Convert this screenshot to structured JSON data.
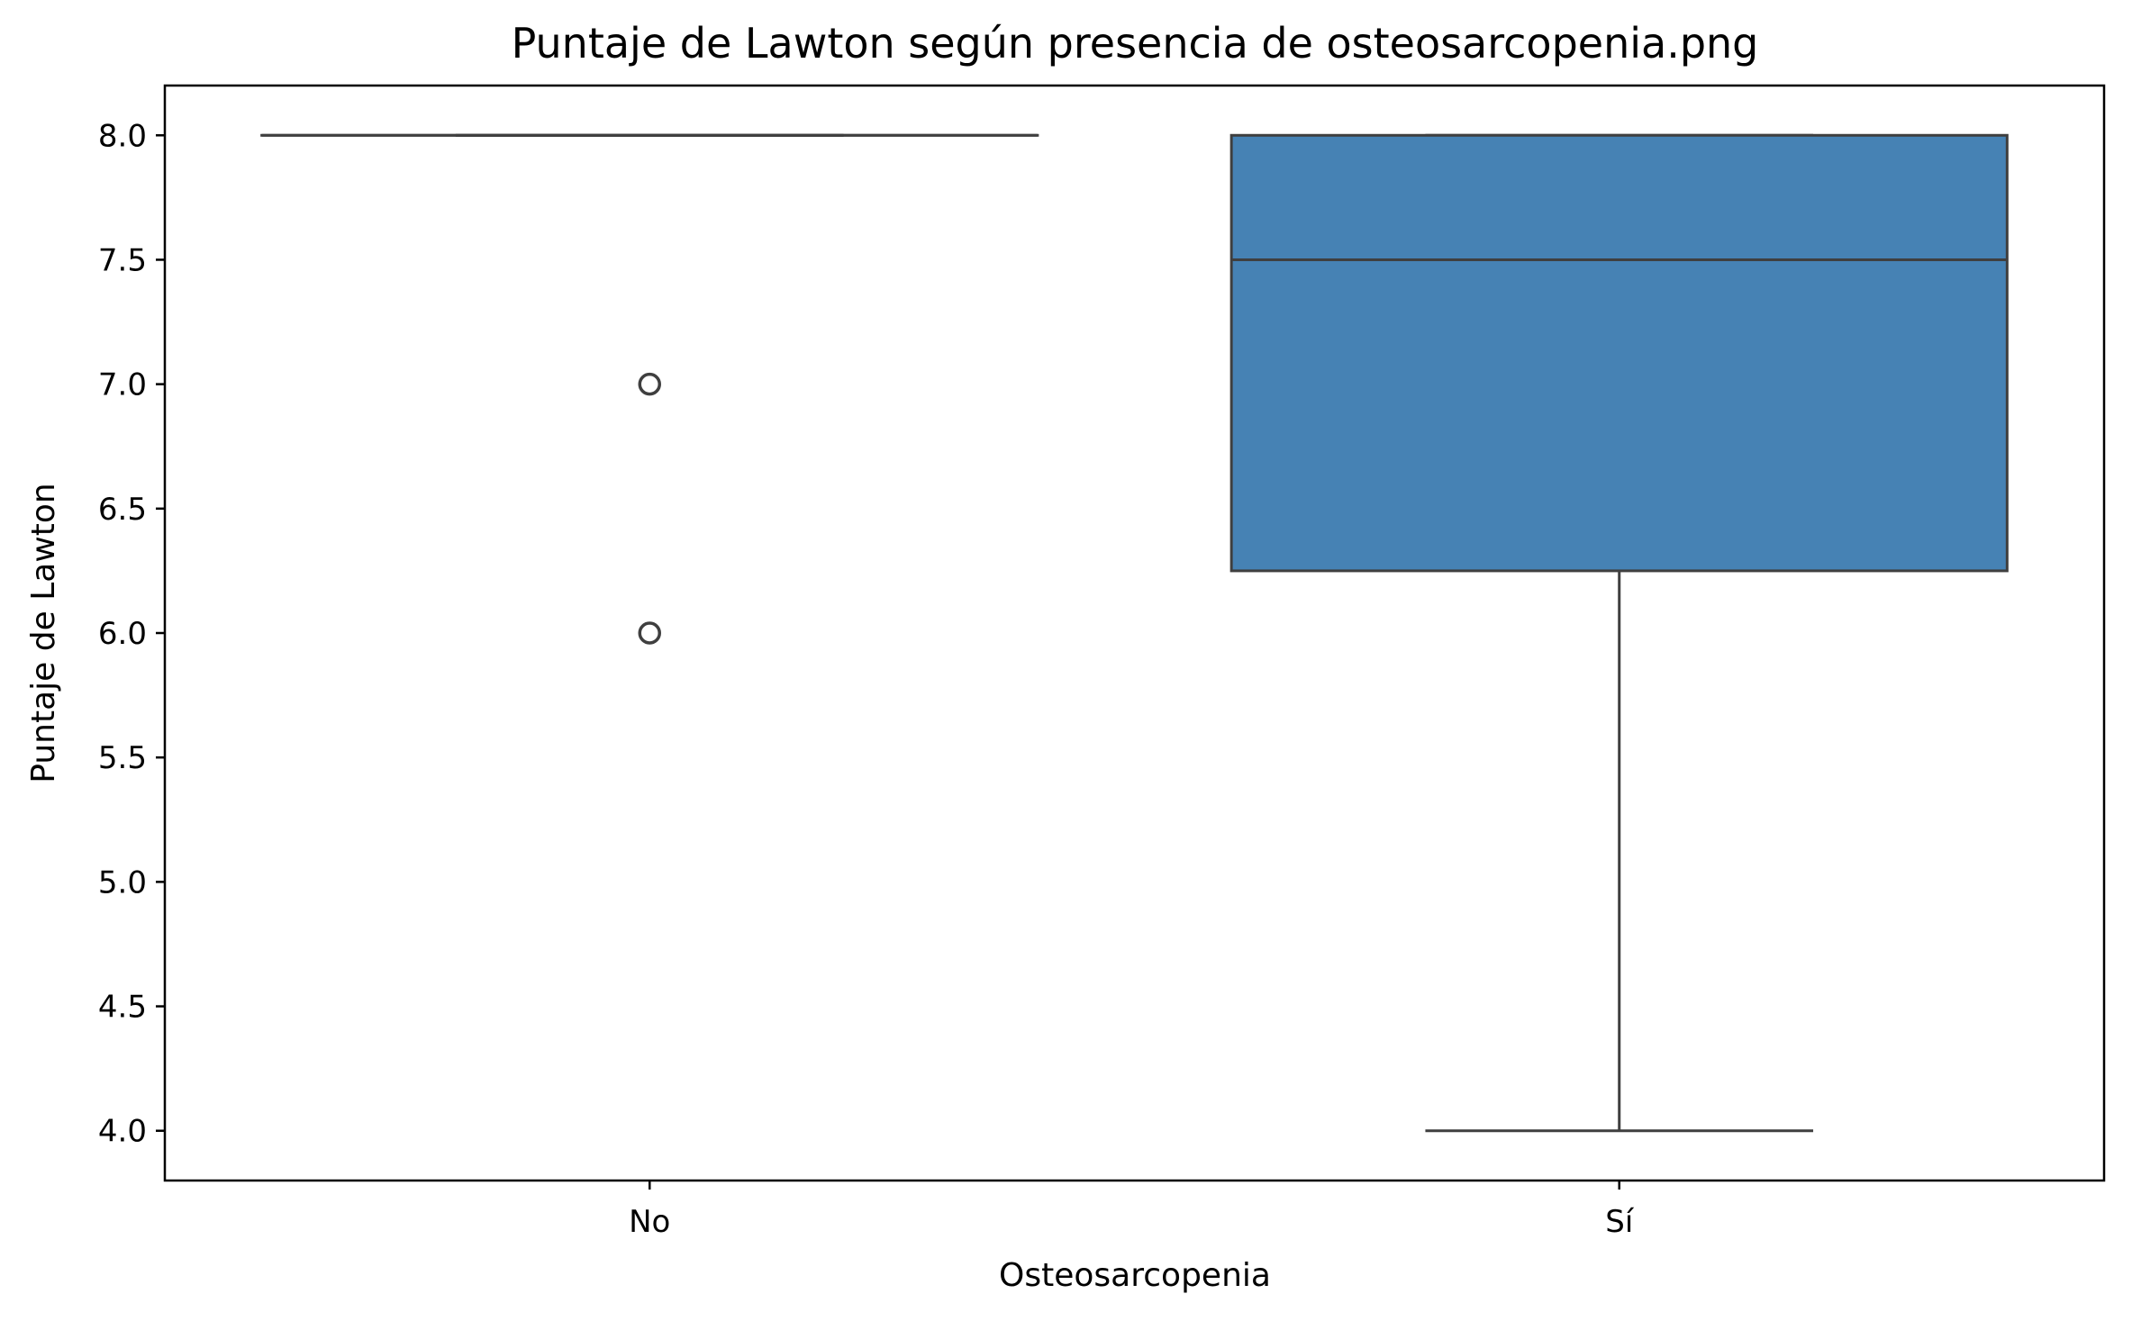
{
  "chart_data": {
    "type": "box",
    "title": "Puntaje de Lawton según presencia de osteosarcopenia.png",
    "xlabel": "Osteosarcopenia",
    "ylabel": "Puntaje de Lawton",
    "categories": [
      "No",
      "Sí"
    ],
    "ylim": [
      3.8,
      8.2
    ],
    "yticks": [
      4.0,
      4.5,
      5.0,
      5.5,
      6.0,
      6.5,
      7.0,
      7.5,
      8.0
    ],
    "ytick_labels": [
      "4.0",
      "4.5",
      "5.0",
      "5.5",
      "6.0",
      "6.5",
      "7.0",
      "7.5",
      "8.0"
    ],
    "grid": false,
    "boxes": [
      {
        "category": "No",
        "whisker_low": 8.0,
        "q1": 8.0,
        "median": 8.0,
        "q3": 8.0,
        "whisker_high": 8.0,
        "outliers": [
          7.0,
          6.0
        ]
      },
      {
        "category": "Sí",
        "whisker_low": 4.0,
        "q1": 6.25,
        "median": 7.5,
        "q3": 8.0,
        "whisker_high": 8.0,
        "outliers": []
      }
    ],
    "colors": {
      "box_fill": "#4682b4",
      "line": "#3f3f3f",
      "axes": "#000000"
    }
  }
}
